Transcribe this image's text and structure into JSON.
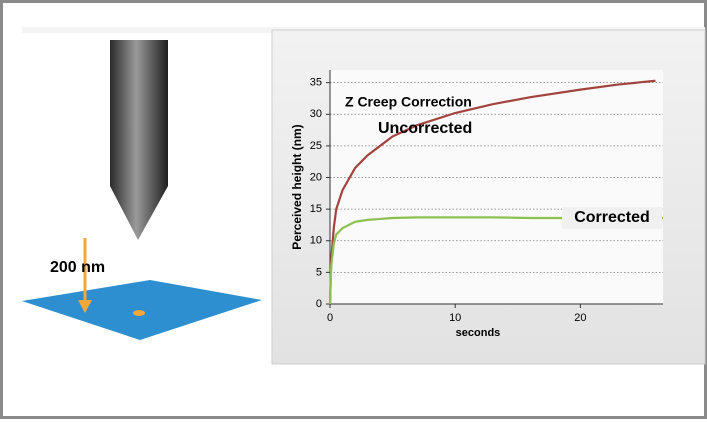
{
  "diagram": {
    "label": "200 nm"
  },
  "chart_data": {
    "type": "line",
    "title": "Z Creep Correction",
    "x_label": "seconds",
    "y_label": "Perceived height (nm)",
    "x": [
      0,
      0.1,
      0.3,
      0.5,
      1,
      2,
      3,
      5,
      7,
      10,
      13,
      16,
      20,
      23,
      26,
      26.6
    ],
    "series": [
      {
        "name": "Uncorrected",
        "color": "#a3433e",
        "values": [
          0,
          7,
          12,
          15,
          18,
          21.5,
          23.5,
          26.5,
          28.3,
          30.2,
          31.6,
          32.7,
          33.9,
          34.7,
          35.3,
          null
        ]
      },
      {
        "name": "Corrected",
        "color": "#8cc152",
        "values": [
          0,
          6,
          9.5,
          11,
          12,
          13,
          13.3,
          13.6,
          13.7,
          13.7,
          13.7,
          13.6,
          13.6,
          13.6,
          13.6,
          13.6
        ]
      }
    ],
    "xlim": [
      0,
      26.6
    ],
    "xticks": [
      0,
      10,
      20
    ],
    "ylim": [
      0,
      37
    ],
    "yticks": [
      0,
      5,
      10,
      15,
      20,
      25,
      30,
      35
    ],
    "grid": true
  }
}
